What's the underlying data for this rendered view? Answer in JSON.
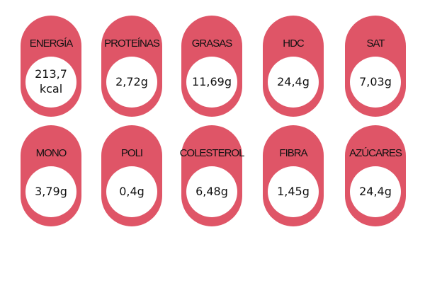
{
  "colors": {
    "pill": "#df5567",
    "circle": "#ffffff",
    "text": "#111111",
    "background": "#ffffff"
  },
  "nutrients": [
    {
      "label": "ENERGÍA",
      "value": "213,7 kcal"
    },
    {
      "label": "PROTEÍNAS",
      "value": "2,72g"
    },
    {
      "label": "GRASAS",
      "value": "11,69g"
    },
    {
      "label": "HDC",
      "value": "24,4g"
    },
    {
      "label": "SAT",
      "value": "7,03g"
    },
    {
      "label": "MONO",
      "value": "3,79g"
    },
    {
      "label": "POLI",
      "value": "0,4g"
    },
    {
      "label": "COLESTEROL",
      "value": "6,48g"
    },
    {
      "label": "FIBRA",
      "value": "1,45g"
    },
    {
      "label": "AZÚCARES",
      "value": "24,4g"
    }
  ]
}
